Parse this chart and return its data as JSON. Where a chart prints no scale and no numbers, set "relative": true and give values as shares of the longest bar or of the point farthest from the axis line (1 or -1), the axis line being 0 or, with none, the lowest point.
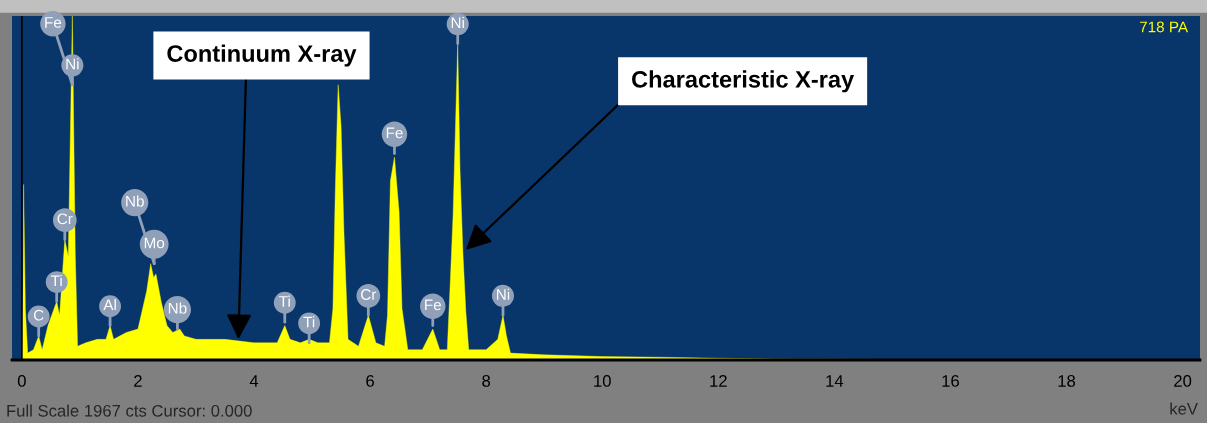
{
  "chart_data": {
    "type": "area",
    "relative": true,
    "xlabel": "keV",
    "x": [
      0.0,
      0.02,
      0.03,
      0.06,
      0.1,
      0.2,
      0.29,
      0.35,
      0.45,
      0.6,
      0.65,
      0.74,
      0.8,
      0.87,
      0.92,
      0.96,
      1.1,
      1.3,
      1.45,
      1.52,
      1.58,
      1.8,
      2.0,
      2.15,
      2.22,
      2.27,
      2.31,
      2.4,
      2.5,
      2.6,
      2.72,
      2.8,
      3.0,
      3.5,
      4.0,
      4.4,
      4.53,
      4.62,
      4.8,
      4.95,
      5.1,
      5.3,
      5.36,
      5.4,
      5.45,
      5.5,
      5.55,
      5.62,
      5.8,
      5.97,
      6.1,
      6.25,
      6.3,
      6.35,
      6.42,
      6.5,
      6.55,
      6.65,
      6.9,
      7.08,
      7.2,
      7.33,
      7.38,
      7.43,
      7.51,
      7.55,
      7.6,
      7.65,
      7.7,
      8.0,
      8.2,
      8.29,
      8.35,
      8.42,
      9.0,
      10.0,
      11.0,
      12.0,
      13.0,
      14.5,
      15.5,
      20.0
    ],
    "series": [
      {
        "color": "#ffff00",
        "values": [
          0.0,
          0.21,
          0.51,
          0.15,
          0.02,
          0.03,
          0.07,
          0.03,
          0.1,
          0.17,
          0.13,
          0.35,
          0.3,
          1.0,
          0.31,
          0.04,
          0.05,
          0.06,
          0.06,
          0.1,
          0.06,
          0.08,
          0.09,
          0.2,
          0.28,
          0.24,
          0.25,
          0.17,
          0.1,
          0.08,
          0.09,
          0.07,
          0.06,
          0.06,
          0.05,
          0.05,
          0.1,
          0.06,
          0.05,
          0.06,
          0.05,
          0.05,
          0.15,
          0.49,
          0.8,
          0.68,
          0.37,
          0.06,
          0.04,
          0.13,
          0.05,
          0.04,
          0.13,
          0.52,
          0.59,
          0.43,
          0.15,
          0.03,
          0.03,
          0.09,
          0.03,
          0.03,
          0.22,
          0.42,
          0.92,
          0.55,
          0.31,
          0.14,
          0.03,
          0.03,
          0.06,
          0.13,
          0.07,
          0.02,
          0.015,
          0.01,
          0.008,
          0.005,
          0.003,
          0.002,
          0.0,
          0.0
        ]
      }
    ],
    "xlim": [
      -0.17,
      20.3
    ],
    "xticks": [
      0,
      2,
      4,
      6,
      8,
      10,
      12,
      14,
      16,
      18,
      20
    ],
    "ref_lines": [
      {
        "axis": "x",
        "value": 0,
        "color": "#000000"
      }
    ],
    "annotations": [
      {
        "text": "Continuum X-ray",
        "x": 3.73,
        "y": 0.06
      },
      {
        "text": "Characteristic X-ray",
        "x": 7.65,
        "y": 0.32
      },
      "718 PA",
      "Full Scale 1967 cts Cursor: 0.000",
      {
        "text": "C",
        "x": 0.29,
        "y": 0.07
      },
      {
        "text": "Ti",
        "x": 0.6,
        "y": 0.17
      },
      {
        "text": "Cr",
        "x": 0.74,
        "y": 0.35
      },
      {
        "text": "Ni",
        "x": 0.87,
        "y": 0.8
      },
      {
        "text": "Fe",
        "x": 0.87,
        "y": 0.8
      },
      {
        "text": "Al",
        "x": 1.52,
        "y": 0.1
      },
      {
        "text": "Mo",
        "x": 2.28,
        "y": 0.28
      },
      {
        "text": "Nb",
        "x": 2.28,
        "y": 0.28
      },
      {
        "text": "Nb",
        "x": 2.68,
        "y": 0.09
      },
      {
        "text": "Ti",
        "x": 4.53,
        "y": 0.11
      },
      {
        "text": "Ti",
        "x": 4.95,
        "y": 0.05
      },
      {
        "text": "Cr",
        "x": 5.97,
        "y": 0.13
      },
      {
        "text": "Fe",
        "x": 6.42,
        "y": 0.6
      },
      {
        "text": "Fe",
        "x": 7.08,
        "y": 0.1
      },
      {
        "text": "Ni",
        "x": 7.51,
        "y": 0.92
      },
      {
        "text": "Ni",
        "x": 8.29,
        "y": 0.13
      }
    ]
  }
}
